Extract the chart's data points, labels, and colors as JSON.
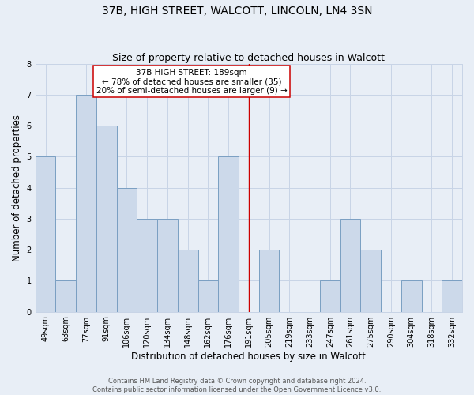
{
  "title": "37B, HIGH STREET, WALCOTT, LINCOLN, LN4 3SN",
  "subtitle": "Size of property relative to detached houses in Walcott",
  "xlabel": "Distribution of detached houses by size in Walcott",
  "ylabel": "Number of detached properties",
  "bin_labels": [
    "49sqm",
    "63sqm",
    "77sqm",
    "91sqm",
    "106sqm",
    "120sqm",
    "134sqm",
    "148sqm",
    "162sqm",
    "176sqm",
    "191sqm",
    "205sqm",
    "219sqm",
    "233sqm",
    "247sqm",
    "261sqm",
    "275sqm",
    "290sqm",
    "304sqm",
    "318sqm",
    "332sqm"
  ],
  "bar_heights": [
    5,
    1,
    7,
    6,
    4,
    3,
    3,
    2,
    1,
    5,
    0,
    2,
    0,
    0,
    1,
    3,
    2,
    0,
    1,
    0,
    1
  ],
  "bar_color": "#ccd9ea",
  "bar_edge_color": "#7a9fc2",
  "bar_edge_width": 0.7,
  "vline_x_index": 10,
  "vline_color": "#cc0000",
  "annotation_title": "37B HIGH STREET: 189sqm",
  "annotation_line1": "← 78% of detached houses are smaller (35)",
  "annotation_line2": "20% of semi-detached houses are larger (9) →",
  "annotation_box_color": "#ffffff",
  "annotation_box_edge_color": "#cc0000",
  "ylim": [
    0,
    8
  ],
  "yticks": [
    0,
    1,
    2,
    3,
    4,
    5,
    6,
    7,
    8
  ],
  "grid_color": "#c8d4e6",
  "background_color": "#e8eef6",
  "footer_line1": "Contains HM Land Registry data © Crown copyright and database right 2024.",
  "footer_line2": "Contains public sector information licensed under the Open Government Licence v3.0.",
  "title_fontsize": 10,
  "subtitle_fontsize": 9,
  "xlabel_fontsize": 8.5,
  "ylabel_fontsize": 8.5,
  "tick_fontsize": 7,
  "annot_fontsize": 7.5,
  "footer_fontsize": 6
}
